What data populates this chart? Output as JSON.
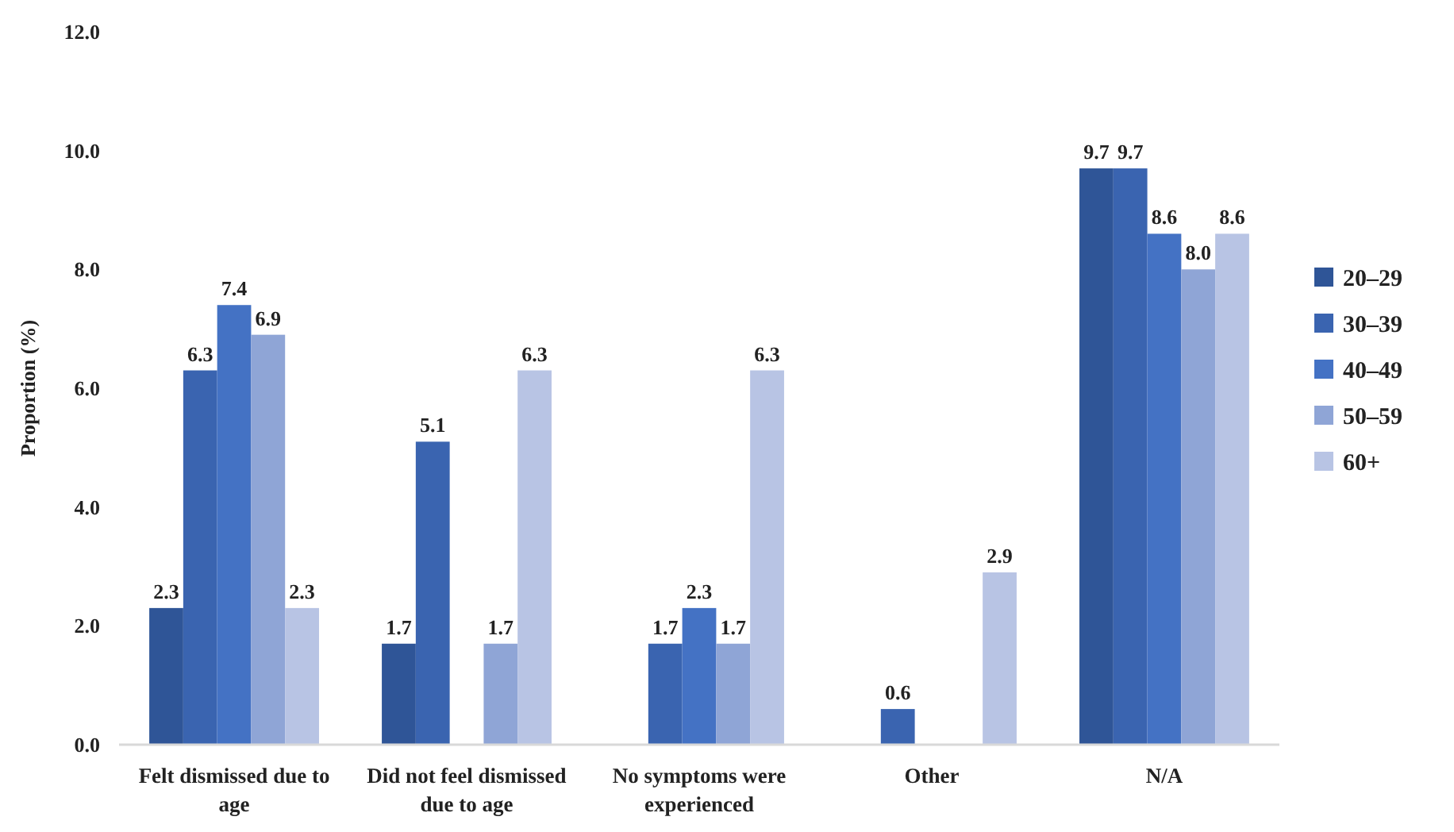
{
  "chart_data": {
    "type": "bar",
    "ylabel": "Proportion (%)",
    "categories": [
      "Felt dismissed due to age",
      "Did not feel dismissed due to age",
      "No symptoms were experienced",
      "Other",
      "N/A"
    ],
    "series": [
      {
        "name": "20–29",
        "color": "#2f5597",
        "values": [
          2.3,
          1.7,
          null,
          null,
          9.7
        ]
      },
      {
        "name": "30–39",
        "color": "#3a64b0",
        "values": [
          6.3,
          5.1,
          1.7,
          0.6,
          9.7
        ]
      },
      {
        "name": "40–49",
        "color": "#4472c4",
        "values": [
          7.4,
          null,
          2.3,
          null,
          8.6
        ]
      },
      {
        "name": "50–59",
        "color": "#8fa5d6",
        "values": [
          6.9,
          1.7,
          1.7,
          null,
          8.0
        ],
        "value_labels": [
          "6.9",
          "1.7",
          "1.7",
          null,
          "8.0"
        ]
      },
      {
        "name": "60+",
        "color": "#b8c4e4",
        "values": [
          2.3,
          6.3,
          6.3,
          2.9,
          8.6
        ]
      }
    ],
    "ylim": [
      0,
      12
    ],
    "yticks": [
      {
        "value": 0,
        "label": "0.0"
      },
      {
        "value": 2,
        "label": "2.0"
      },
      {
        "value": 4,
        "label": "4.0"
      },
      {
        "value": 6,
        "label": "6.0"
      },
      {
        "value": 8,
        "label": "8.0"
      },
      {
        "value": 10,
        "label": "10.0"
      },
      {
        "value": 12,
        "label": "12.0"
      }
    ],
    "data_labels": true,
    "legend": "right",
    "grid": false
  }
}
